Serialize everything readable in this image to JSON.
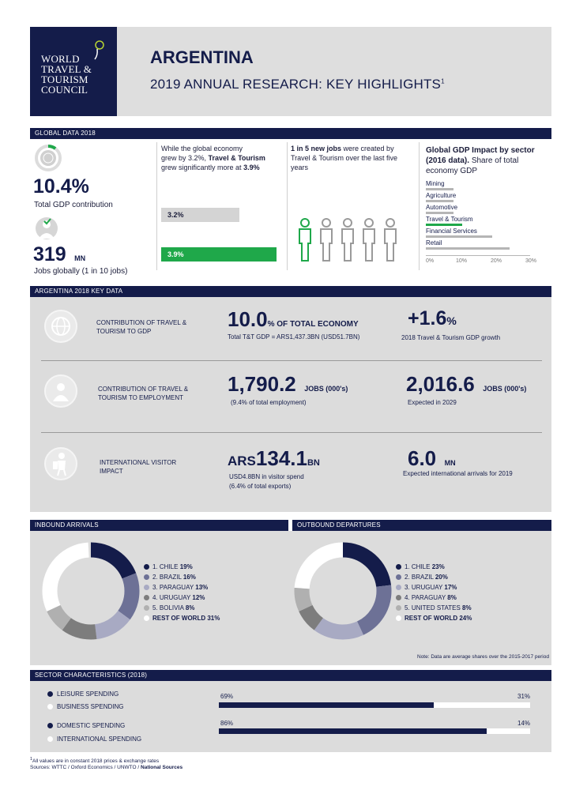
{
  "header": {
    "logo_lines": [
      "WORLD",
      "TRAVEL &",
      "TOURISM",
      "COUNCIL"
    ],
    "country": "ARGENTINA",
    "subtitle": "2019 ANNUAL RESEARCH: KEY HIGHLIGHTS",
    "footnote_ref": "1"
  },
  "global": {
    "band": "GLOBAL DATA 2018",
    "gdp_value": "10.4%",
    "gdp_label": "Total GDP contribution",
    "jobs_value": "319",
    "jobs_unit": "MN",
    "jobs_label": "Jobs globally (1 in 10 jobs)",
    "growth_text_1": "While the global economy",
    "growth_text_2": "grew by 3.2%,",
    "growth_text_2b": "Travel & Tourism",
    "growth_text_3": "grew significantly more at",
    "growth_text_3b": "3.9%",
    "bar_global_label": "3.2%",
    "bar_tt_label": "3.9%",
    "bar_global_value": 3.2,
    "bar_tt_value": 3.9,
    "jobs_text_1b": "1 in 5 new jobs",
    "jobs_text_1": "were created by",
    "jobs_text_2": "Travel & Tourism over the last five",
    "jobs_text_3": "years",
    "sector_title_1": "Global GDP Impact by sector",
    "sector_title_2b": "(2016 data).",
    "sector_title_2": "Share of total",
    "sector_title_3": "economy GDP",
    "sectors": [
      {
        "name": "Mining",
        "value": 8
      },
      {
        "name": "Agriculture",
        "value": 8
      },
      {
        "name": "Automotive",
        "value": 8
      },
      {
        "name": "Travel & Tourism",
        "value": 10.4
      },
      {
        "name": "Financial Services",
        "value": 19
      },
      {
        "name": "Retail",
        "value": 24
      }
    ],
    "sector_ticks": [
      "0%",
      "10%",
      "20%",
      "30%"
    ],
    "accent": "#1fa84a"
  },
  "key": {
    "band": "ARGENTINA 2018 KEY DATA",
    "row1_label": "CONTRIBUTION OF TRAVEL & TOURISM TO GDP",
    "row1_value": "10.0",
    "row1_unit": "% OF TOTAL ECONOMY",
    "row1_sub": "Total T&T GDP = ARS1,437.3BN (USD51.7BN)",
    "row1_growth": "+1.6",
    "row1_growth_unit": "%",
    "row1_growth_sub": "2018 Travel & Tourism GDP growth",
    "row2_label": "CONTRIBUTION OF TRAVEL & TOURISM TO EMPLOYMENT",
    "row2_value": "1,790.2",
    "row2_unit": "JOBS (000's)",
    "row2_sub": "(9.4% of total employment)",
    "row2_future": "2,016.6",
    "row2_future_unit": "JOBS (000's)",
    "row2_future_sub": "Expected in 2029",
    "row3_label": "INTERNATIONAL VISITOR IMPACT",
    "row3_prefix": "ARS",
    "row3_value": "134.1",
    "row3_unit": "BN",
    "row3_sub1": "USD4.8BN in visitor spend",
    "row3_sub2": "(6.4% of total exports)",
    "row3_arrivals": "6.0",
    "row3_arrivals_unit": "MN",
    "row3_arrivals_sub": "Expected international arrivals for 2019"
  },
  "inbound": {
    "band": "INBOUND ARRIVALS",
    "items": [
      {
        "label": "1. CHILE",
        "value": "19%",
        "pct": 19,
        "color": "#141c4a"
      },
      {
        "label": "2. BRAZIL",
        "value": "16%",
        "pct": 16,
        "color": "#6d7196"
      },
      {
        "label": "3. PARAGUAY",
        "value": "13%",
        "pct": 13,
        "color": "#a8aac3"
      },
      {
        "label": "4. URUGUAY",
        "value": "12%",
        "pct": 12,
        "color": "#7d7d7d"
      },
      {
        "label": "5. BOLIVIA",
        "value": "8%",
        "pct": 8,
        "color": "#b0b0b0"
      },
      {
        "label": "REST OF WORLD",
        "value": "31%",
        "pct": 31,
        "color": "#ffffff"
      }
    ]
  },
  "outbound": {
    "band": "OUTBOUND DEPARTURES",
    "items": [
      {
        "label": "1. CHILE",
        "value": "23%",
        "pct": 23,
        "color": "#141c4a"
      },
      {
        "label": "2. BRAZIL",
        "value": "20%",
        "pct": 20,
        "color": "#6d7196"
      },
      {
        "label": "3. URUGUAY",
        "value": "17%",
        "pct": 17,
        "color": "#a8aac3"
      },
      {
        "label": "4. PARAGUAY",
        "value": "8%",
        "pct": 8,
        "color": "#7d7d7d"
      },
      {
        "label": "5. UNITED STATES",
        "value": "8%",
        "pct": 8,
        "color": "#b0b0b0"
      },
      {
        "label": "REST OF WORLD",
        "value": "24%",
        "pct": 24,
        "color": "#ffffff"
      }
    ],
    "note": "Note: Data are average shares over the 2015-2017 period"
  },
  "sector": {
    "band": "SECTOR CHARACTERISTICS (2018)",
    "leisure_label": "LEISURE SPENDING",
    "business_label": "BUSINESS SPENDING",
    "leisure_pct_label": "69%",
    "business_pct_label": "31%",
    "leisure_pct": 69,
    "domestic_label": "DOMESTIC SPENDING",
    "international_label": "INTERNATIONAL SPENDING",
    "domestic_pct_label": "86%",
    "international_pct_label": "14%",
    "domestic_pct": 86
  },
  "footer": {
    "note_sup": "1",
    "note": "All values are in constant 2018 prices & exchange rates",
    "sources": "Sources: WTTC / Oxford Economics / UNWTO /",
    "sources_bold": "National Sources"
  }
}
